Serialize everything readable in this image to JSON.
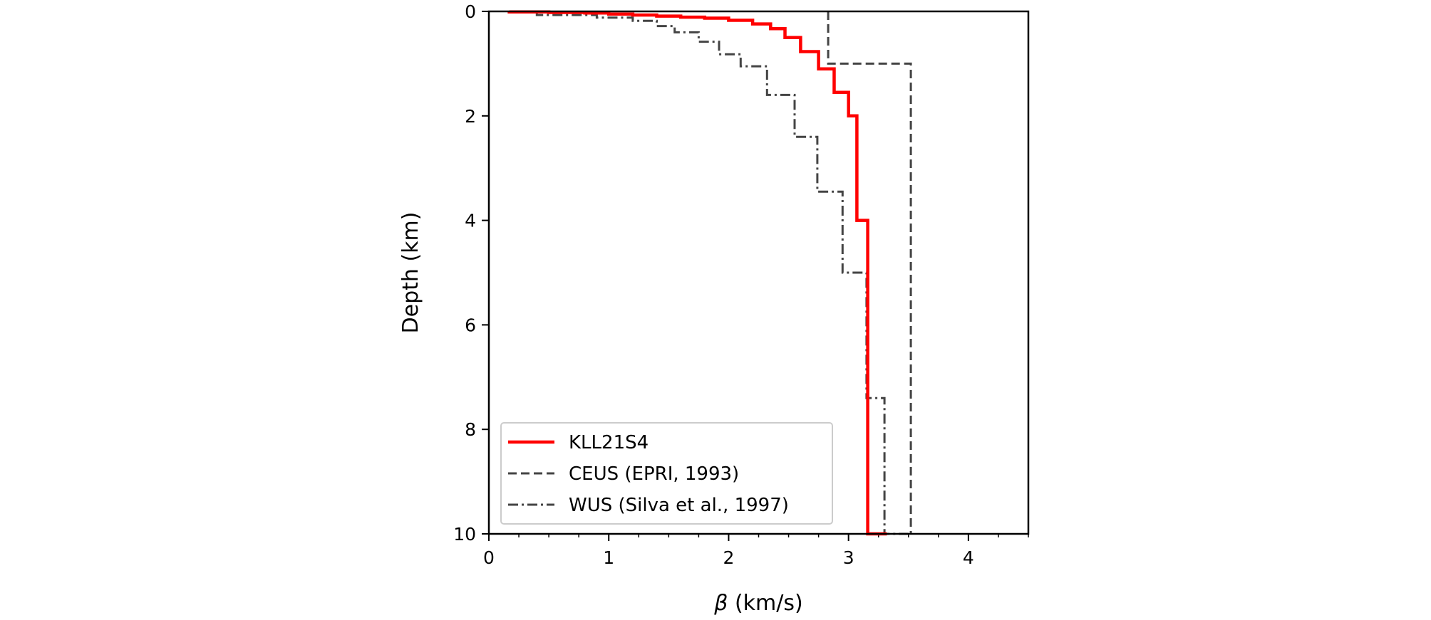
{
  "chart_data": {
    "type": "line",
    "xlabel_symbol": "β",
    "xlabel_unit": " (km/s)",
    "ylabel": "Depth (km)",
    "xlim": [
      0,
      4.5
    ],
    "ylim": [
      0,
      10
    ],
    "y_inverted": true,
    "x_ticks": [
      0,
      1,
      2,
      3,
      4
    ],
    "y_ticks": [
      0,
      2,
      4,
      6,
      8,
      10
    ],
    "grid": false,
    "legend_position": "lower-left",
    "series": [
      {
        "name": "KLL21S4",
        "color": "#ff0000",
        "style": "solid",
        "steps": [
          {
            "v": 0.17,
            "top": 0.0,
            "bottom": 0.01
          },
          {
            "v": 0.5,
            "top": 0.01,
            "bottom": 0.02
          },
          {
            "v": 0.8,
            "top": 0.02,
            "bottom": 0.03
          },
          {
            "v": 1.0,
            "top": 0.03,
            "bottom": 0.05
          },
          {
            "v": 1.2,
            "top": 0.05,
            "bottom": 0.07
          },
          {
            "v": 1.4,
            "top": 0.07,
            "bottom": 0.09
          },
          {
            "v": 1.6,
            "top": 0.09,
            "bottom": 0.11
          },
          {
            "v": 1.8,
            "top": 0.11,
            "bottom": 0.13
          },
          {
            "v": 2.0,
            "top": 0.13,
            "bottom": 0.17
          },
          {
            "v": 2.2,
            "top": 0.17,
            "bottom": 0.24
          },
          {
            "v": 2.35,
            "top": 0.24,
            "bottom": 0.33
          },
          {
            "v": 2.47,
            "top": 0.33,
            "bottom": 0.5
          },
          {
            "v": 2.6,
            "top": 0.5,
            "bottom": 0.77
          },
          {
            "v": 2.75,
            "top": 0.77,
            "bottom": 1.1
          },
          {
            "v": 2.88,
            "top": 1.1,
            "bottom": 1.55
          },
          {
            "v": 3.0,
            "top": 1.55,
            "bottom": 2.0
          },
          {
            "v": 3.07,
            "top": 2.0,
            "bottom": 4.0
          },
          {
            "v": 3.16,
            "top": 4.0,
            "bottom": 10.0
          },
          {
            "v": 3.32,
            "top": 10.0,
            "bottom": 10.0
          }
        ]
      },
      {
        "name": "CEUS (EPRI, 1993)",
        "color": "#444444",
        "style": "dashed",
        "steps": [
          {
            "v": 2.83,
            "top": 0.0,
            "bottom": 1.0
          },
          {
            "v": 3.52,
            "top": 1.0,
            "bottom": 10.0
          }
        ]
      },
      {
        "name": "WUS (Silva et al., 1997)",
        "color": "#444444",
        "style": "dashdot",
        "steps": [
          {
            "v": 0.4,
            "top": 0.0,
            "bottom": 0.07
          },
          {
            "v": 0.9,
            "top": 0.07,
            "bottom": 0.12
          },
          {
            "v": 1.2,
            "top": 0.12,
            "bottom": 0.18
          },
          {
            "v": 1.4,
            "top": 0.18,
            "bottom": 0.28
          },
          {
            "v": 1.55,
            "top": 0.28,
            "bottom": 0.4
          },
          {
            "v": 1.75,
            "top": 0.4,
            "bottom": 0.58
          },
          {
            "v": 1.92,
            "top": 0.58,
            "bottom": 0.82
          },
          {
            "v": 2.1,
            "top": 0.82,
            "bottom": 1.05
          },
          {
            "v": 2.32,
            "top": 1.05,
            "bottom": 1.6
          },
          {
            "v": 2.55,
            "top": 1.6,
            "bottom": 2.4
          },
          {
            "v": 2.74,
            "top": 2.4,
            "bottom": 3.45
          },
          {
            "v": 2.95,
            "top": 3.45,
            "bottom": 5.0
          },
          {
            "v": 3.15,
            "top": 5.0,
            "bottom": 7.4
          },
          {
            "v": 3.3,
            "top": 7.4,
            "bottom": 10.0
          },
          {
            "v": 3.5,
            "top": 10.0,
            "bottom": 10.0
          }
        ]
      }
    ]
  }
}
